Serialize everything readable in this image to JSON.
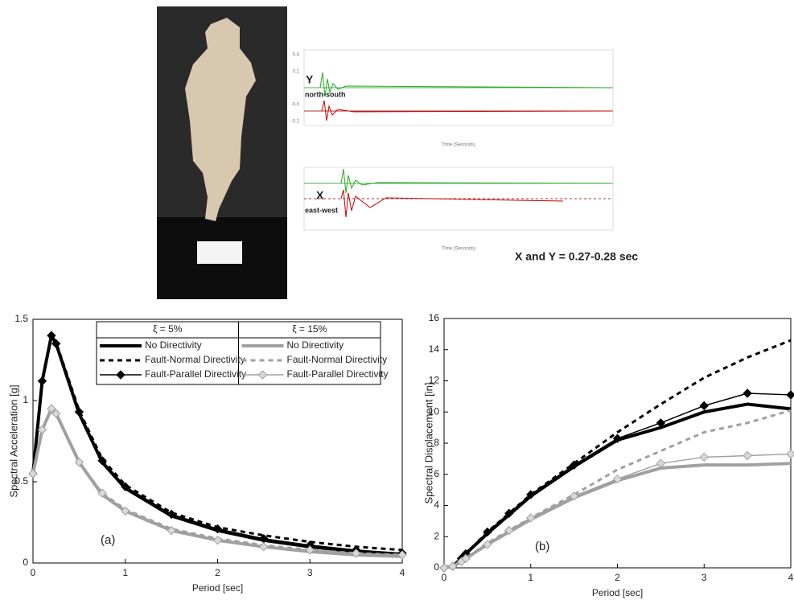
{
  "top_panel": {
    "y_label": "Y",
    "y_direction": "north-south",
    "x_label": "X",
    "x_direction": "east-west",
    "result": "X and Y = 0.27-0.28 sec",
    "time_axis_label": "Time (Seconds)",
    "amplitude_ticks": [
      "0.4",
      "0.2",
      "-0.0",
      "-0.2"
    ]
  },
  "chart_data": [
    {
      "type": "line",
      "annotation": "(a)",
      "x_label": "Period [sec]",
      "y_label": "Spectral Acceleration [g]",
      "legend_groups": [
        "ξ = 5%",
        "ξ = 15%"
      ],
      "x": [
        0,
        0.1,
        0.2,
        0.25,
        0.5,
        0.75,
        1,
        1.5,
        2,
        2.5,
        3,
        3.5,
        4
      ],
      "xlim": [
        0,
        4
      ],
      "xticks": [
        0,
        1,
        2,
        3,
        4
      ],
      "ylim": [
        0,
        1.5
      ],
      "yticks": [
        0,
        0.5,
        1,
        1.5
      ],
      "series": [
        {
          "name": "No Directivity",
          "color": "#000000",
          "width": 4,
          "style": "solid",
          "marker": "none",
          "values": [
            0.55,
            1.12,
            1.4,
            1.35,
            0.92,
            0.62,
            0.46,
            0.29,
            0.2,
            0.14,
            0.1,
            0.07,
            0.05
          ]
        },
        {
          "name": "Fault-Normal Directivity",
          "color": "#000000",
          "width": 3,
          "style": "dashed",
          "marker": "none",
          "values": [
            0.55,
            1.12,
            1.4,
            1.36,
            0.94,
            0.64,
            0.48,
            0.31,
            0.22,
            0.17,
            0.13,
            0.1,
            0.08
          ]
        },
        {
          "name": "Fault-Parallel Directivity",
          "color": "#000000",
          "width": 1.5,
          "style": "solid",
          "marker": "diamond",
          "marker_fill": "#000000",
          "values": [
            0.55,
            1.12,
            1.4,
            1.35,
            0.93,
            0.63,
            0.47,
            0.3,
            0.21,
            0.15,
            0.11,
            0.08,
            0.06
          ]
        },
        {
          "name": "No Directivity",
          "color": "#a0a0a0",
          "width": 4,
          "style": "solid",
          "marker": "none",
          "values": [
            0.55,
            0.82,
            0.95,
            0.92,
            0.62,
            0.42,
            0.32,
            0.2,
            0.14,
            0.1,
            0.07,
            0.05,
            0.04
          ]
        },
        {
          "name": "Fault-Normal Directivity",
          "color": "#a0a0a0",
          "width": 3,
          "style": "dashed",
          "marker": "none",
          "values": [
            0.55,
            0.82,
            0.95,
            0.92,
            0.62,
            0.43,
            0.33,
            0.21,
            0.15,
            0.11,
            0.08,
            0.06,
            0.05
          ]
        },
        {
          "name": "Fault-Parallel Directivity",
          "color": "#a0a0a0",
          "width": 1.5,
          "style": "solid",
          "marker": "diamond",
          "marker_fill": "#d9d9d9",
          "values": [
            0.55,
            0.82,
            0.95,
            0.92,
            0.62,
            0.43,
            0.32,
            0.2,
            0.14,
            0.1,
            0.08,
            0.06,
            0.05
          ]
        }
      ]
    },
    {
      "type": "line",
      "annotation": "(b)",
      "x_label": "Period [sec]",
      "y_label": "Spectral Displacement [in]",
      "x": [
        0,
        0.1,
        0.2,
        0.25,
        0.5,
        0.75,
        1,
        1.5,
        2,
        2.5,
        3,
        3.5,
        4
      ],
      "xlim": [
        0,
        4
      ],
      "xticks": [
        0,
        1,
        2,
        3,
        4
      ],
      "ylim": [
        0,
        16
      ],
      "yticks": [
        0,
        2,
        4,
        6,
        8,
        10,
        12,
        14,
        16
      ],
      "series": [
        {
          "color": "#000000",
          "width": 4,
          "style": "solid",
          "marker": "none",
          "values": [
            0,
            0.1,
            0.6,
            0.9,
            2.2,
            3.4,
            4.6,
            6.5,
            8.2,
            9.0,
            10.0,
            10.5,
            10.2
          ]
        },
        {
          "color": "#000000",
          "width": 3,
          "style": "dashed",
          "marker": "none",
          "values": [
            0,
            0.1,
            0.6,
            0.9,
            2.3,
            3.5,
            4.7,
            6.7,
            8.7,
            10.5,
            12.2,
            13.5,
            14.6
          ]
        },
        {
          "color": "#000000",
          "width": 1.5,
          "style": "solid",
          "marker": "diamond",
          "marker_fill": "#000000",
          "values": [
            0,
            0.1,
            0.6,
            0.9,
            2.3,
            3.5,
            4.7,
            6.6,
            8.3,
            9.3,
            10.4,
            11.2,
            11.1
          ]
        },
        {
          "color": "#a0a0a0",
          "width": 4,
          "style": "solid",
          "marker": "none",
          "values": [
            0,
            0.1,
            0.4,
            0.6,
            1.5,
            2.3,
            3.1,
            4.5,
            5.6,
            6.4,
            6.6,
            6.6,
            6.7
          ]
        },
        {
          "color": "#a0a0a0",
          "width": 3,
          "style": "dashed",
          "marker": "none",
          "values": [
            0,
            0.1,
            0.4,
            0.6,
            1.6,
            2.4,
            3.2,
            4.7,
            6.3,
            7.5,
            8.7,
            9.3,
            10.1
          ]
        },
        {
          "color": "#a0a0a0",
          "width": 1.5,
          "style": "solid",
          "marker": "diamond",
          "marker_fill": "#d9d9d9",
          "values": [
            0,
            0.1,
            0.4,
            0.6,
            1.5,
            2.4,
            3.2,
            4.6,
            5.7,
            6.7,
            7.1,
            7.2,
            7.3
          ]
        }
      ]
    }
  ]
}
